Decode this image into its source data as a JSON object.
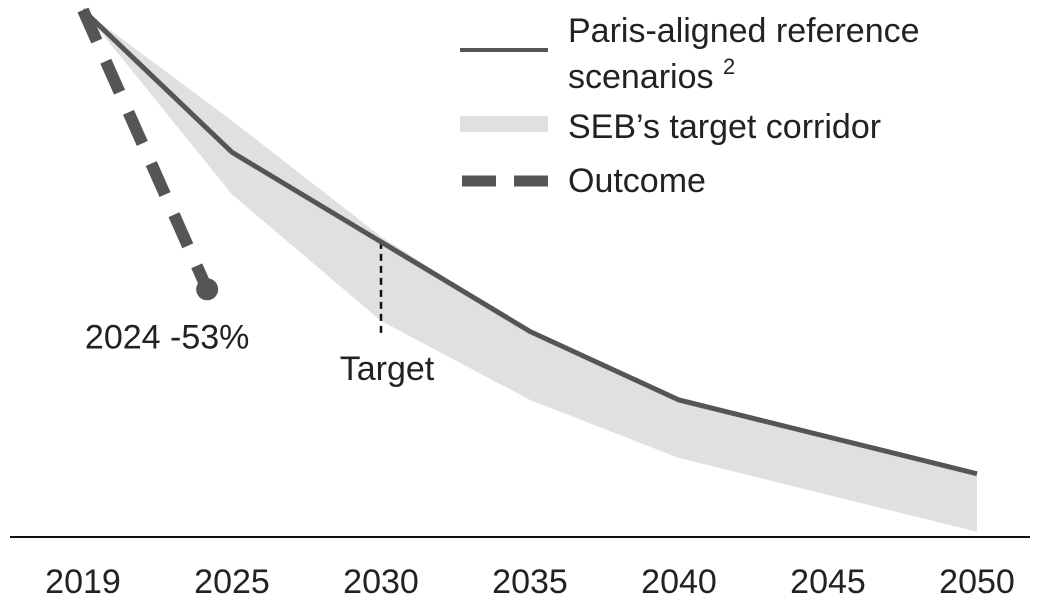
{
  "chart_data": {
    "type": "line",
    "categories": [
      2019,
      2025,
      2030,
      2035,
      2040,
      2045,
      2050
    ],
    "ylim": [
      -100,
      0
    ],
    "series": [
      {
        "name": "Paris-aligned reference scenarios",
        "name_note": "2",
        "color": "#555555",
        "style": "solid",
        "values": [
          0,
          -27,
          -44,
          -61,
          -74,
          -81,
          -88
        ]
      },
      {
        "name": "SEB’s target corridor",
        "color": "#e0e0e0",
        "style": "band",
        "upper": [
          0,
          -21,
          -43,
          -61,
          -74,
          -81,
          -88
        ],
        "lower": [
          0,
          -35,
          -59,
          -74,
          -85,
          -92,
          -99
        ]
      },
      {
        "name": "Outcome",
        "color": "#555555",
        "style": "dashed",
        "x": [
          2019,
          2024
        ],
        "values": [
          0,
          -53
        ]
      }
    ],
    "annotations": [
      {
        "text": "2024 -53%",
        "x": 2024,
        "y": -53
      },
      {
        "text": "Target",
        "x": 2030
      }
    ]
  }
}
